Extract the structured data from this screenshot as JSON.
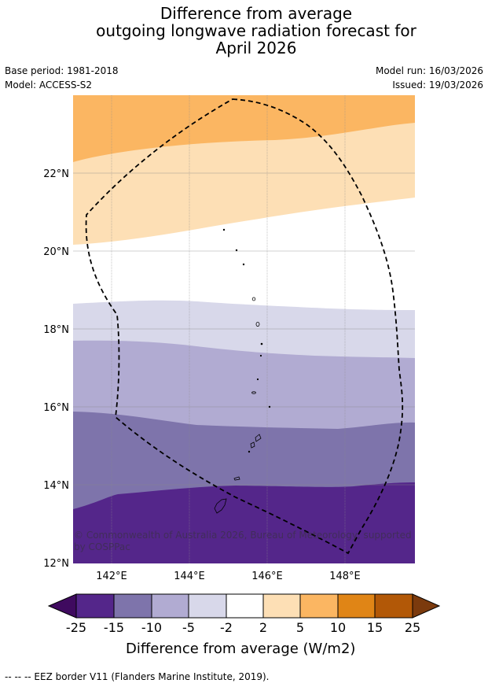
{
  "title": {
    "line1": "Difference from average",
    "line2": "outgoing longwave radiation forecast for",
    "line3": "April 2026"
  },
  "meta": {
    "base_period": "Base period: 1981-2018",
    "model": "Model: ACCESS-S2",
    "model_run": "Model run: 16/03/2026",
    "issued": "Issued: 19/03/2026"
  },
  "map": {
    "lat_labels": [
      "22°N",
      "20°N",
      "18°N",
      "16°N",
      "14°N",
      "12°N"
    ],
    "lon_labels": [
      "142°E",
      "144°E",
      "146°E",
      "148°E"
    ],
    "copyright_line1": "© Commonwealth of Australia 2026, Bureau of Meteorology, supported",
    "copyright_line2": "by COSPPac"
  },
  "colorbar": {
    "tick_labels": [
      "-25",
      "-15",
      "-10",
      "-5",
      "-2",
      "2",
      "5",
      "10",
      "15",
      "25"
    ],
    "colors": [
      "#3f0a5f",
      "#54268a",
      "#7e74ab",
      "#b1abd2",
      "#d8d8ea",
      "#ffffff",
      "#fddfb5",
      "#fbb662",
      "#e08516",
      "#b25807",
      "#7b3a0d"
    ],
    "title": "Difference from average (W/m2)"
  },
  "footnote": "--  --  -- EEZ border V11 (Flanders Marine Institute, 2019)."
}
